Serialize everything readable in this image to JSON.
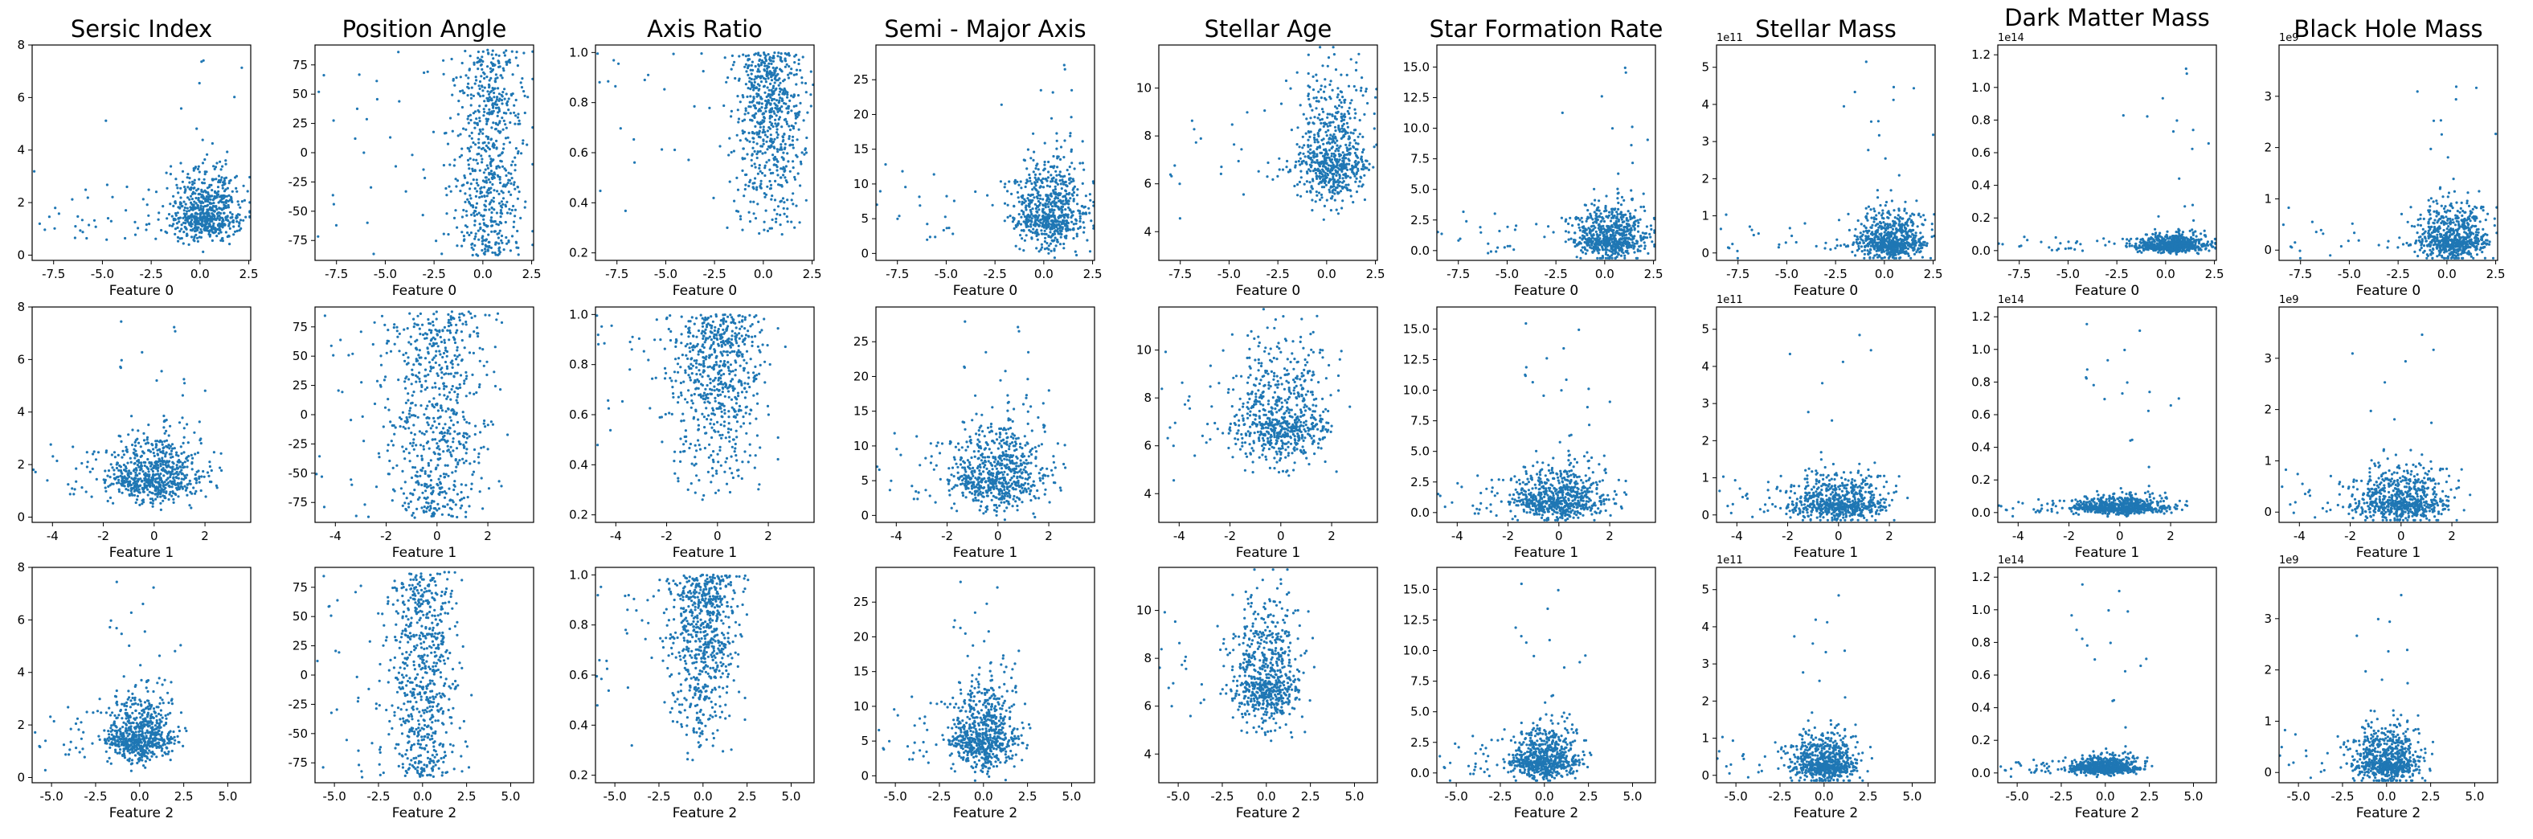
{
  "figure": {
    "column_titles": [
      "Sersic Index",
      "Position Angle",
      "Axis Ratio",
      "Semi - Major Axis",
      "Stellar Age",
      "Star Formation Rate",
      "Stellar Mass",
      "Dark Matter Mass",
      "Black Hole Mass"
    ],
    "row_xlabels": [
      "Feature 0",
      "Feature 1",
      "Feature 2"
    ],
    "point_color": "#1f77b4"
  },
  "chart_data": {
    "type": "scatter",
    "rows": [
      {
        "xlabel": "Feature 0",
        "xlim": [
          -8.6,
          2.6
        ],
        "xticks": [
          "-7.5",
          "-5.0",
          "-2.5",
          "0.0",
          "2.5"
        ],
        "xtick_values": [
          -7.5,
          -5.0,
          -2.5,
          0.0,
          2.5
        ],
        "x_center": 0.3,
        "x_spread": 0.9
      },
      {
        "xlabel": "Feature 1",
        "xlim": [
          -4.8,
          3.8
        ],
        "xticks": [
          "-4",
          "-2",
          "0",
          "2"
        ],
        "xtick_values": [
          -4,
          -2,
          0,
          2
        ],
        "x_center": 0.0,
        "x_spread": 0.95
      },
      {
        "xlabel": "Feature 2",
        "xlim": [
          -6.1,
          6.3
        ],
        "xticks": [
          "-5.0",
          "-2.5",
          "0.0",
          "2.5",
          "5.0"
        ],
        "xtick_values": [
          -5.0,
          -2.5,
          0.0,
          2.5,
          5.0
        ],
        "x_center": 0.0,
        "x_spread": 0.95
      }
    ],
    "columns": [
      {
        "title": "Sersic Index",
        "ylim": [
          -0.2,
          8.0
        ],
        "yticks": [
          "0",
          "2",
          "4",
          "6",
          "8"
        ],
        "ytick_values": [
          0,
          2,
          4,
          6,
          8
        ],
        "y_offset_label": "",
        "y_center": 1.5,
        "y_spread": 0.7
      },
      {
        "title": "Position Angle",
        "ylim": [
          -92,
          92
        ],
        "yticks": [
          "-75",
          "-50",
          "-25",
          "0",
          "25",
          "50",
          "75"
        ],
        "ytick_values": [
          -75,
          -50,
          -25,
          0,
          25,
          50,
          75
        ],
        "y_offset_label": "",
        "y_center": 0,
        "y_spread": 50
      },
      {
        "title": "Axis Ratio",
        "ylim": [
          0.17,
          1.03
        ],
        "yticks": [
          "0.2",
          "0.4",
          "0.6",
          "0.8",
          "1.0"
        ],
        "ytick_values": [
          0.2,
          0.4,
          0.6,
          0.8,
          1.0
        ],
        "y_offset_label": "",
        "y_center": 0.65,
        "y_spread": 0.18
      },
      {
        "title": "Semi - Major Axis",
        "ylim": [
          -1.0,
          30.0
        ],
        "yticks": [
          "0",
          "5",
          "10",
          "15",
          "20",
          "25"
        ],
        "ytick_values": [
          0,
          5,
          10,
          15,
          20,
          25
        ],
        "y_offset_label": "",
        "y_center": 5.5,
        "y_spread": 3.5
      },
      {
        "title": "Stellar Age",
        "ylim": [
          2.8,
          11.8
        ],
        "yticks": [
          "4",
          "6",
          "8",
          "10"
        ],
        "ytick_values": [
          4,
          6,
          8,
          10
        ],
        "y_offset_label": "",
        "y_center": 7.0,
        "y_spread": 1.4
      },
      {
        "title": "Star Formation Rate",
        "ylim": [
          -0.8,
          16.8
        ],
        "yticks": [
          "0.0",
          "2.5",
          "5.0",
          "7.5",
          "10.0",
          "12.5",
          "15.0"
        ],
        "ytick_values": [
          0.0,
          2.5,
          5.0,
          7.5,
          10.0,
          12.5,
          15.0
        ],
        "y_offset_label": "",
        "y_center": 1.0,
        "y_spread": 1.2
      },
      {
        "title": "Stellar Mass",
        "ylim": [
          -0.2,
          5.6
        ],
        "yticks": [
          "0",
          "1",
          "2",
          "3",
          "4",
          "5"
        ],
        "ytick_values": [
          0,
          1,
          2,
          3,
          4,
          5
        ],
        "y_offset_label": "1e11",
        "y_center": 0.3,
        "y_spread": 0.35
      },
      {
        "title": "Dark Matter Mass",
        "ylim": [
          -0.06,
          1.26
        ],
        "yticks": [
          "0.0",
          "0.2",
          "0.4",
          "0.6",
          "0.8",
          "1.0",
          "1.2"
        ],
        "ytick_values": [
          0.0,
          0.2,
          0.4,
          0.6,
          0.8,
          1.0,
          1.2
        ],
        "y_offset_label": "1e14",
        "y_center": 0.03,
        "y_spread": 0.03
      },
      {
        "title": "Black Hole Mass",
        "ylim": [
          -0.2,
          4.0
        ],
        "yticks": [
          "0",
          "1",
          "2",
          "3"
        ],
        "ytick_values": [
          0,
          1,
          2,
          3
        ],
        "y_offset_label": "1e9",
        "y_center": 0.2,
        "y_spread": 0.3
      }
    ]
  }
}
